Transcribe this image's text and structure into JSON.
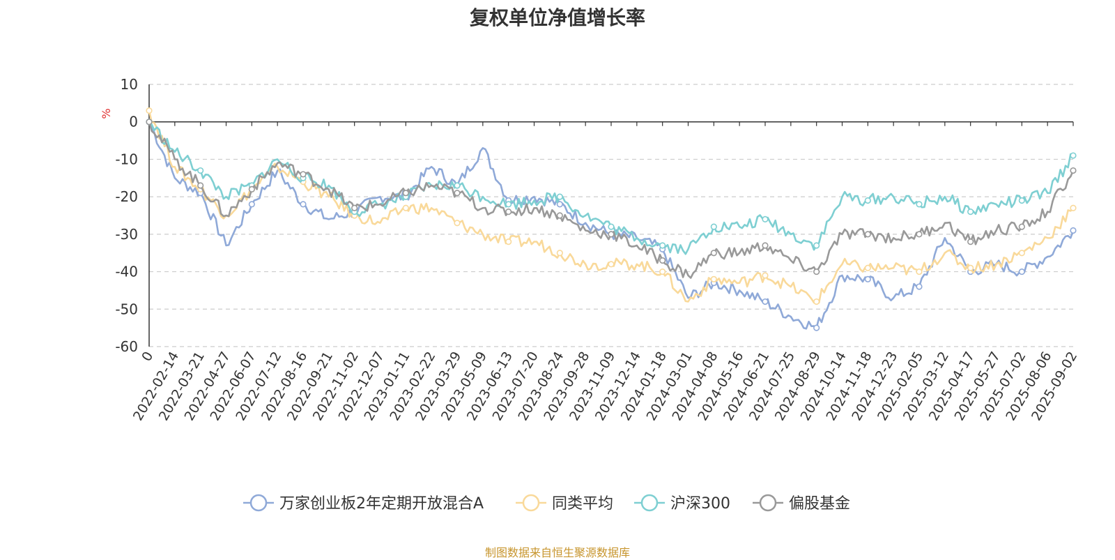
{
  "title": "复权单位净值增长率",
  "source": "制图数据来自恒生聚源数据库",
  "chart_data": {
    "type": "line",
    "title": "复权单位净值增长率",
    "ylabel": "%",
    "ylim": [
      -60,
      10
    ],
    "yticks": [
      10,
      0,
      -10,
      -20,
      -30,
      -40,
      -50,
      -60
    ],
    "grid": true,
    "legend_position": "bottom",
    "x_labels": [
      "0",
      "2022-02-14",
      "2022-03-21",
      "2022-04-27",
      "2022-06-07",
      "2022-07-12",
      "2022-08-16",
      "2022-09-21",
      "2022-11-02",
      "2022-12-07",
      "2023-01-11",
      "2023-02-22",
      "2023-03-29",
      "2023-05-09",
      "2023-06-13",
      "2023-07-20",
      "2023-08-24",
      "2023-09-28",
      "2023-11-09",
      "2023-12-14",
      "2024-01-18",
      "2024-03-01",
      "2024-04-08",
      "2024-05-16",
      "2024-06-21",
      "2024-07-25",
      "2024-08-29",
      "2024-10-14",
      "2024-11-18",
      "2024-12-23",
      "2025-02-05",
      "2025-03-12",
      "2025-04-17",
      "2025-05-27",
      "2025-07-02",
      "2025-08-06",
      "2025-09-02"
    ],
    "series": [
      {
        "name": "万家创业板2年定期开放混合A",
        "color": "#8fa9d8",
        "values": [
          0,
          -15,
          -19,
          -33,
          -22,
          -13,
          -22,
          -26,
          -24,
          -20,
          -20,
          -12,
          -17,
          -7,
          -21,
          -20,
          -22,
          -27,
          -30,
          -31,
          -34,
          -47,
          -43,
          -45,
          -48,
          -52,
          -55,
          -41,
          -42,
          -47,
          -44,
          -31,
          -40,
          -38,
          -40,
          -36,
          -29
        ]
      },
      {
        "name": "同类平均",
        "color": "#f9d99a",
        "values": [
          3,
          -12,
          -18,
          -25,
          -18,
          -12,
          -16,
          -20,
          -25,
          -27,
          -23,
          -23,
          -27,
          -30,
          -32,
          -32,
          -35,
          -38,
          -38,
          -38,
          -40,
          -48,
          -42,
          -43,
          -41,
          -44,
          -48,
          -38,
          -39,
          -39,
          -40,
          -35,
          -39,
          -38,
          -35,
          -31,
          -23
        ]
      },
      {
        "name": "沪深300",
        "color": "#7ecfd2",
        "values": [
          0,
          -8,
          -13,
          -20,
          -17,
          -10,
          -15,
          -17,
          -24,
          -22,
          -20,
          -17,
          -17,
          -20,
          -22,
          -21,
          -20,
          -25,
          -28,
          -31,
          -33,
          -34,
          -28,
          -28,
          -26,
          -30,
          -33,
          -20,
          -21,
          -20,
          -22,
          -20,
          -24,
          -22,
          -21,
          -19,
          -9
        ]
      },
      {
        "name": "偏股基金",
        "color": "#999999",
        "values": [
          0,
          -10,
          -17,
          -25,
          -18,
          -11,
          -14,
          -18,
          -23,
          -22,
          -19,
          -17,
          -19,
          -23,
          -24,
          -23,
          -25,
          -29,
          -30,
          -33,
          -37,
          -41,
          -35,
          -35,
          -33,
          -37,
          -40,
          -30,
          -30,
          -31,
          -30,
          -27,
          -32,
          -29,
          -28,
          -24,
          -13
        ]
      }
    ]
  }
}
